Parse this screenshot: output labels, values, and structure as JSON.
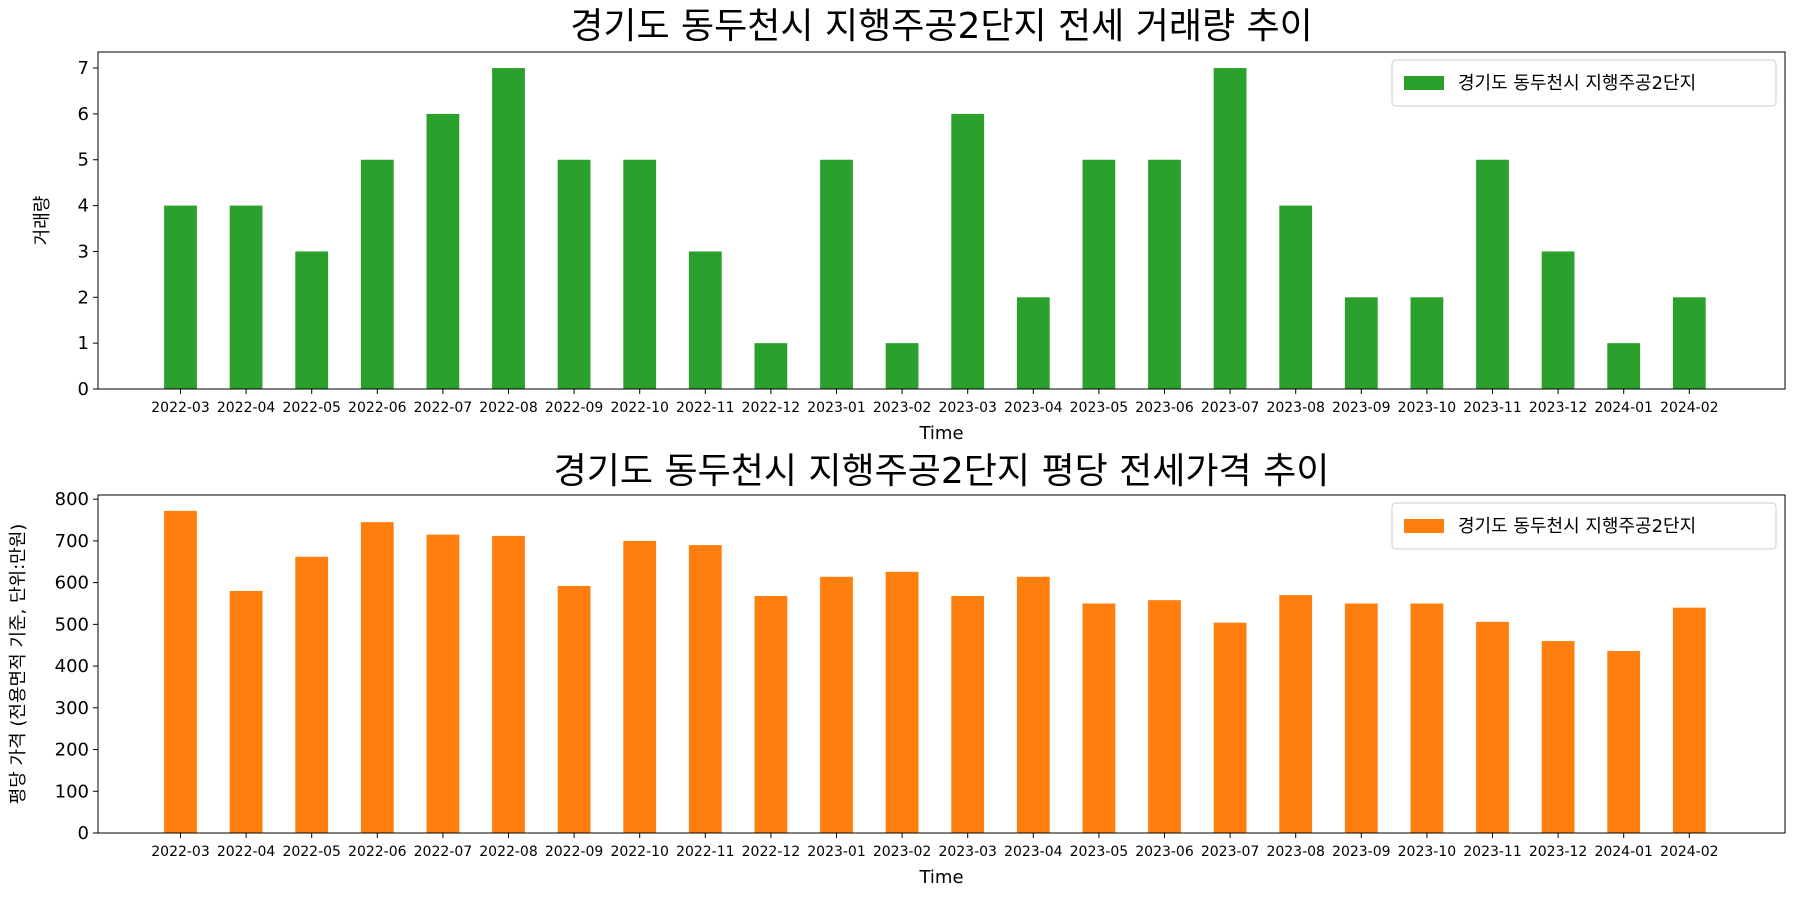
{
  "chart_data": [
    {
      "type": "bar",
      "title": "경기도 동두천시 지행주공2단지 전세 거래량 추이",
      "xlabel": "Time",
      "ylabel": "거래량",
      "ylim": [
        0,
        7.35
      ],
      "yticks": [
        "0",
        "1",
        "2",
        "3",
        "4",
        "5",
        "6",
        "7"
      ],
      "ytick_values": [
        0,
        1,
        2,
        3,
        4,
        5,
        6,
        7
      ],
      "legend": "경기도 동두천시 지행주공2단지",
      "legend_position": "top-right",
      "color": "#2ca02c",
      "categories": [
        "2022-03",
        "2022-04",
        "2022-05",
        "2022-06",
        "2022-07",
        "2022-08",
        "2022-09",
        "2022-10",
        "2022-11",
        "2022-12",
        "2023-01",
        "2023-02",
        "2023-03",
        "2023-04",
        "2023-05",
        "2023-06",
        "2023-07",
        "2023-08",
        "2023-09",
        "2023-10",
        "2023-11",
        "2023-12",
        "2024-01",
        "2024-02"
      ],
      "values": [
        4,
        4,
        3,
        5,
        6,
        7,
        5,
        5,
        3,
        1,
        5,
        1,
        6,
        2,
        5,
        5,
        7,
        4,
        2,
        2,
        5,
        3,
        1,
        2
      ]
    },
    {
      "type": "bar",
      "title": "경기도 동두천시 지행주공2단지 평당 전세가격 추이",
      "xlabel": "Time",
      "ylabel": "평당 가격 (전용면적 기준, 단위:만원)",
      "ylim": [
        0,
        810
      ],
      "yticks": [
        "0",
        "100",
        "200",
        "300",
        "400",
        "500",
        "600",
        "700",
        "800"
      ],
      "ytick_values": [
        0,
        100,
        200,
        300,
        400,
        500,
        600,
        700,
        800
      ],
      "legend": "경기도 동두천시 지행주공2단지",
      "legend_position": "top-right",
      "color": "#ff7f0e",
      "categories": [
        "2022-03",
        "2022-04",
        "2022-05",
        "2022-06",
        "2022-07",
        "2022-08",
        "2022-09",
        "2022-10",
        "2022-11",
        "2022-12",
        "2023-01",
        "2023-02",
        "2023-03",
        "2023-04",
        "2023-05",
        "2023-06",
        "2023-07",
        "2023-08",
        "2023-09",
        "2023-10",
        "2023-11",
        "2023-12",
        "2024-01",
        "2024-02"
      ],
      "values": [
        772,
        580,
        662,
        745,
        715,
        712,
        592,
        700,
        690,
        568,
        614,
        626,
        568,
        614,
        550,
        558,
        504,
        570,
        550,
        550,
        506,
        460,
        436,
        540
      ]
    }
  ]
}
